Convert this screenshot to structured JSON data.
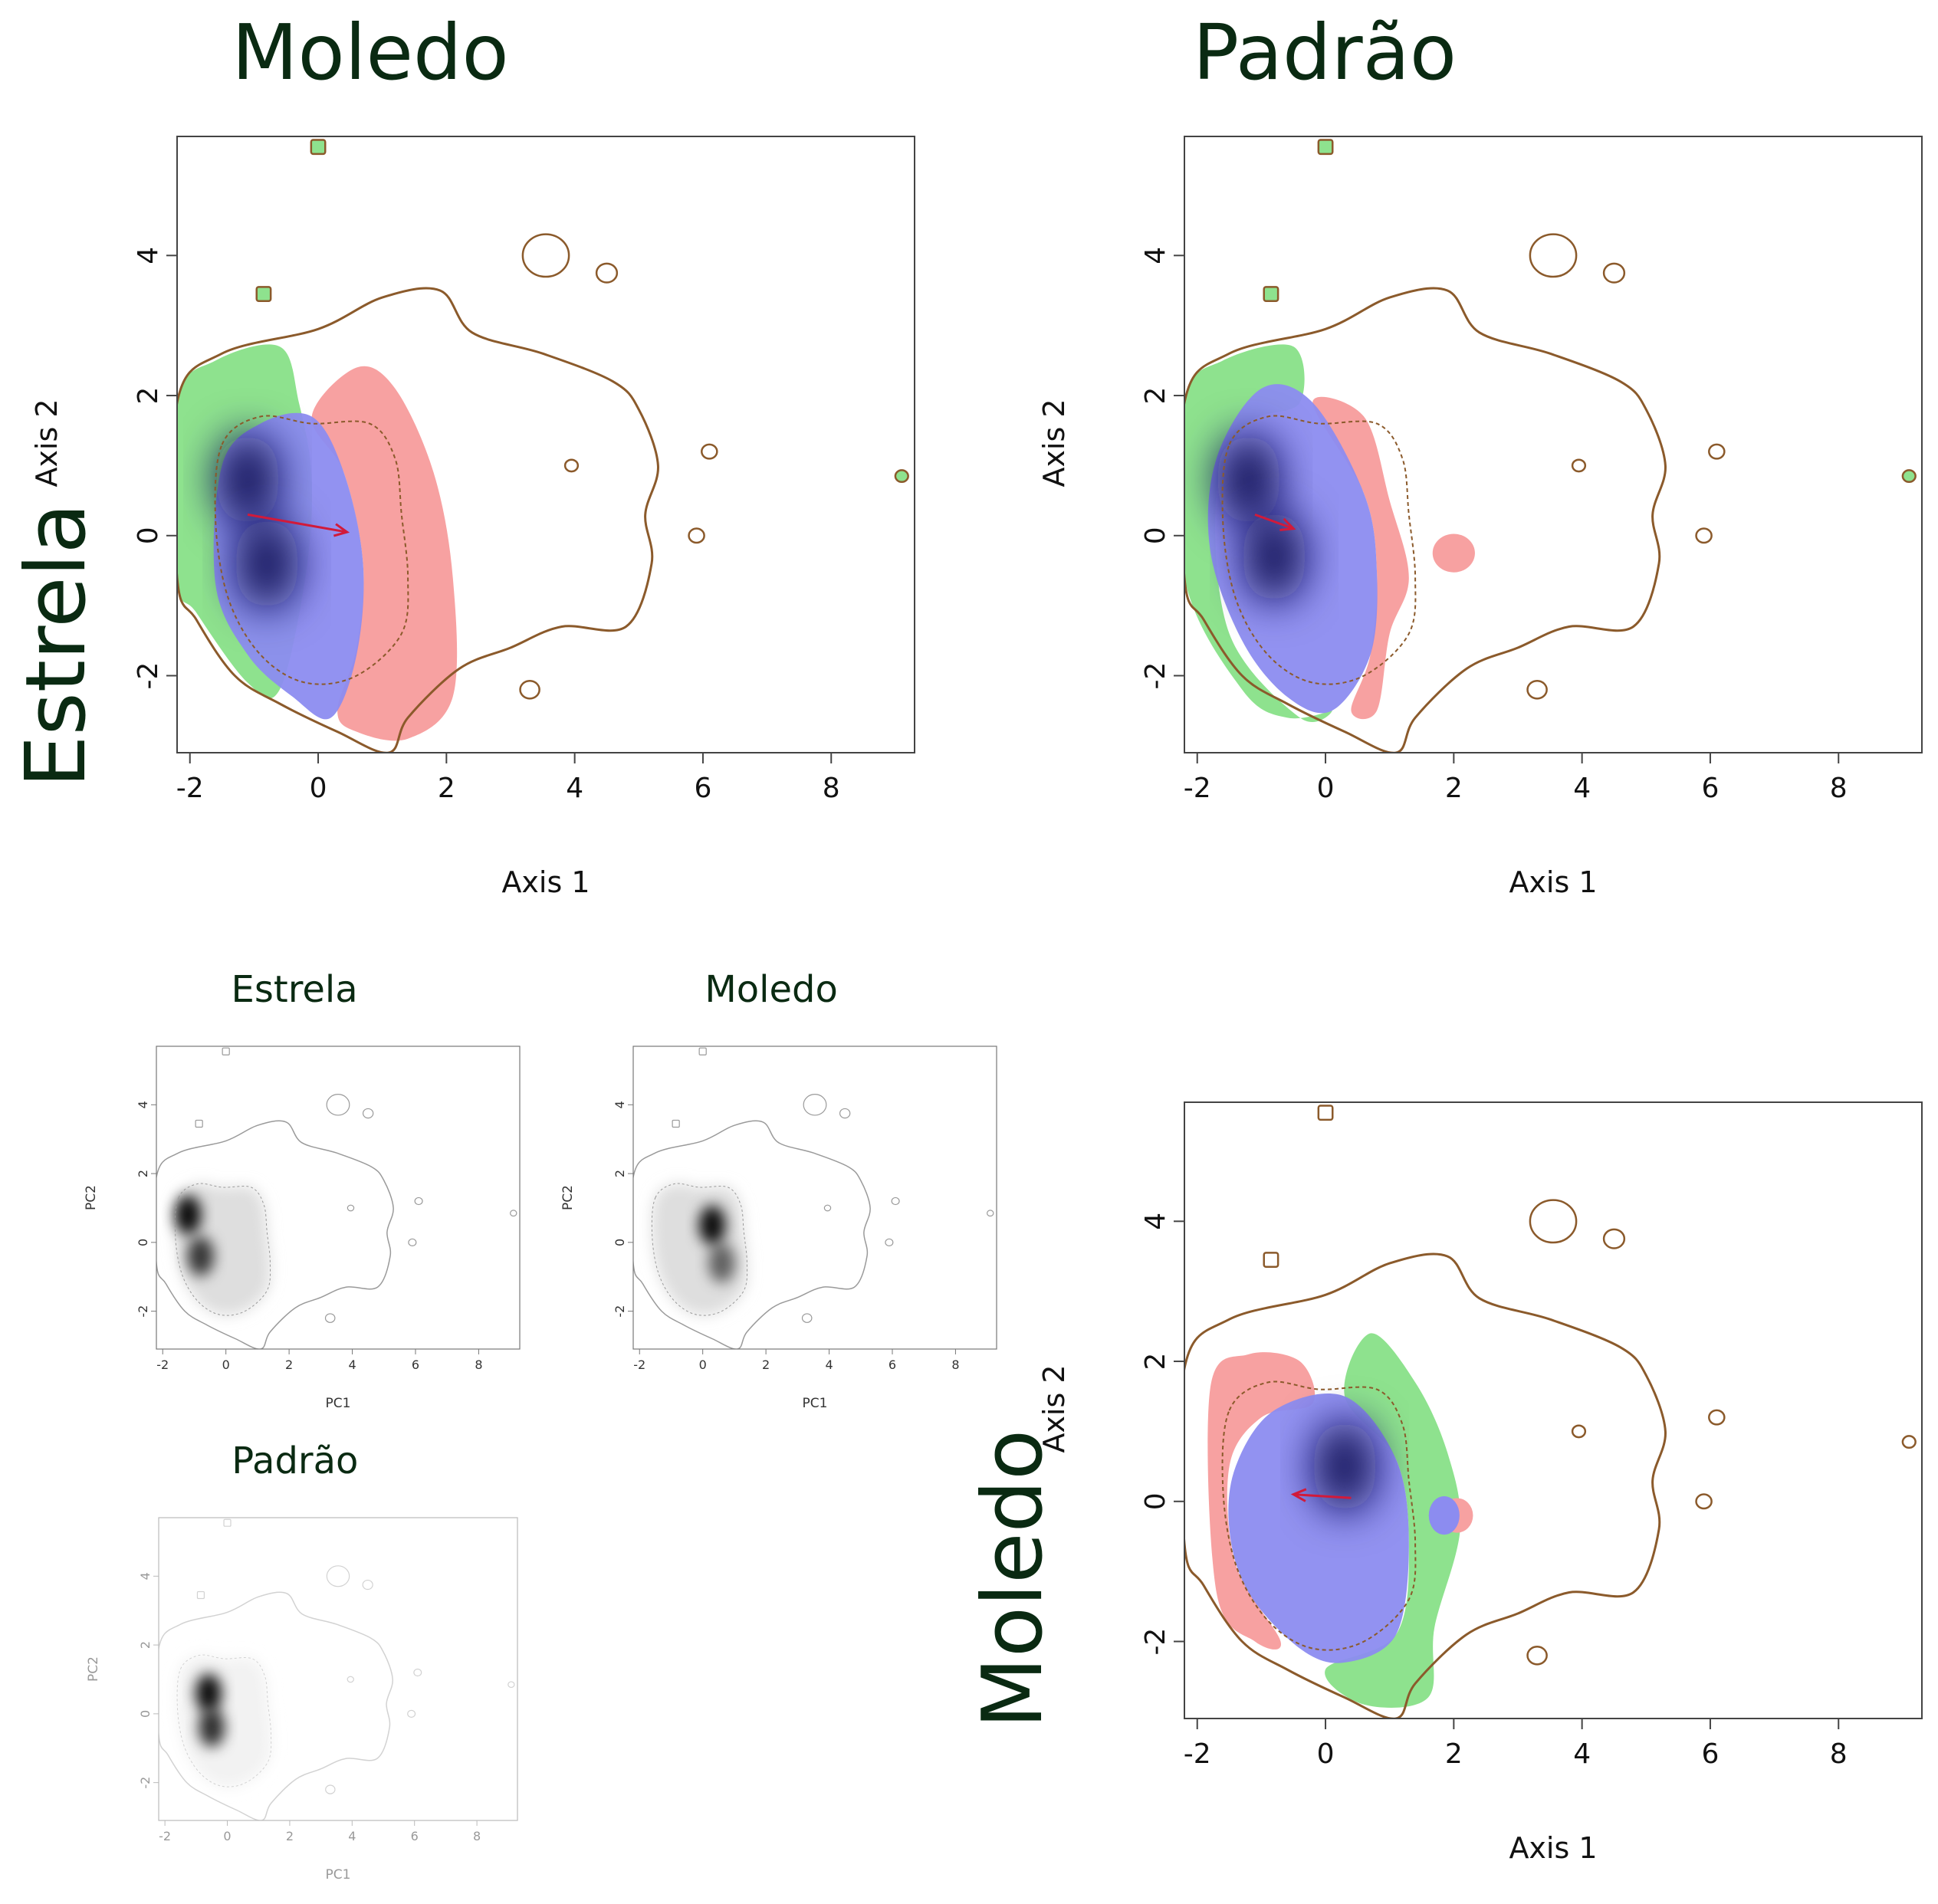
{
  "colors": {
    "text_dark_green": "#0a2a12",
    "contour_brown": "#8b5a2b",
    "green_region": "#8ee28e",
    "red_region": "#f7a1a1",
    "blue_region": "#8c8cf0",
    "blue_core": "#0b0b55",
    "arrow_red": "#d11a3a",
    "gray_axis": "#444444",
    "gray_light": "#aaaaaa"
  },
  "headings": {
    "top_left": "Moledo",
    "top_right": "Padrão",
    "row_top": "Estrela",
    "row_bottom": "Moledo"
  },
  "chart_data": [
    {
      "id": "niche_estrela_moledo",
      "type": "scatter",
      "subtype": "niche-overlap-map",
      "xlabel": "Axis 1",
      "ylabel": "Axis 2",
      "xlim": [
        -2.2,
        9.3
      ],
      "ylim": [
        -3.1,
        5.7
      ],
      "xticks": [
        -2,
        0,
        2,
        4,
        6,
        8
      ],
      "yticks": [
        -2,
        0,
        2,
        4
      ],
      "regions": {
        "green": [
          [
            -2.2,
            1.9
          ],
          [
            -1.6,
            2.5
          ],
          [
            -0.6,
            2.7
          ],
          [
            -0.3,
            1.9
          ],
          [
            -0.1,
            0.8
          ],
          [
            -0.2,
            -0.6
          ],
          [
            -0.6,
            -2.2
          ],
          [
            -1.1,
            -2.1
          ],
          [
            -1.9,
            -1.1
          ],
          [
            -2.2,
            -0.6
          ]
        ],
        "blue": [
          [
            -1.5,
            1.0
          ],
          [
            -0.9,
            1.6
          ],
          [
            -0.1,
            1.7
          ],
          [
            0.4,
            0.9
          ],
          [
            0.7,
            -0.4
          ],
          [
            0.6,
            -1.7
          ],
          [
            0.2,
            -2.6
          ],
          [
            -0.4,
            -2.3
          ],
          [
            -1.1,
            -1.7
          ],
          [
            -1.6,
            -0.7
          ]
        ],
        "red": [
          [
            -0.1,
            1.7
          ],
          [
            0.6,
            2.4
          ],
          [
            1.2,
            2.1
          ],
          [
            1.8,
            0.9
          ],
          [
            2.1,
            -0.6
          ],
          [
            2.1,
            -2.3
          ],
          [
            1.4,
            -2.9
          ],
          [
            0.6,
            -2.8
          ],
          [
            0.3,
            -2.5
          ],
          [
            0.6,
            -1.6
          ],
          [
            0.7,
            -0.4
          ],
          [
            0.4,
            0.9
          ]
        ]
      },
      "dense_cores": [
        {
          "x": -1.1,
          "y": 0.8
        },
        {
          "x": -0.8,
          "y": -0.4
        }
      ],
      "arrow": {
        "from": [
          -1.1,
          0.3
        ],
        "to": [
          0.45,
          0.05
        ]
      }
    },
    {
      "id": "niche_estrela_padrao",
      "type": "scatter",
      "subtype": "niche-overlap-map",
      "xlabel": "Axis 1",
      "ylabel": "Axis 2",
      "xlim": [
        -2.2,
        9.3
      ],
      "ylim": [
        -3.1,
        5.7
      ],
      "xticks": [
        -2,
        0,
        2,
        4,
        6,
        8
      ],
      "yticks": [
        -2,
        0,
        2,
        4
      ],
      "regions": {
        "green": [
          [
            -2.2,
            1.9
          ],
          [
            -1.6,
            2.5
          ],
          [
            -0.5,
            2.7
          ],
          [
            -0.4,
            1.9
          ],
          [
            -1.2,
            1.6
          ],
          [
            -1.7,
            0.6
          ],
          [
            -1.5,
            -1.4
          ],
          [
            -0.4,
            -2.6
          ],
          [
            0.1,
            -2.5
          ],
          [
            -0.6,
            -2.6
          ],
          [
            -1.3,
            -2.2
          ],
          [
            -2.2,
            -0.6
          ]
        ],
        "blue": [
          [
            -1.7,
            1.1
          ],
          [
            -1.0,
            2.1
          ],
          [
            -0.2,
            1.9
          ],
          [
            0.6,
            0.6
          ],
          [
            0.8,
            -0.5
          ],
          [
            0.7,
            -1.7
          ],
          [
            0.1,
            -2.5
          ],
          [
            -0.6,
            -2.3
          ],
          [
            -1.3,
            -1.5
          ],
          [
            -1.8,
            -0.2
          ]
        ],
        "red": [
          [
            -0.2,
            1.9
          ],
          [
            0.6,
            1.7
          ],
          [
            1.0,
            0.5
          ],
          [
            1.3,
            -0.6
          ],
          [
            1.0,
            -1.4
          ],
          [
            0.8,
            -2.5
          ],
          [
            0.4,
            -2.5
          ],
          [
            0.7,
            -1.7
          ],
          [
            0.8,
            -0.5
          ],
          [
            0.6,
            0.6
          ]
        ],
        "red_blob": {
          "x": 2.0,
          "y": -0.25
        }
      },
      "dense_cores": [
        {
          "x": -1.2,
          "y": 0.8
        },
        {
          "x": -0.8,
          "y": -0.3
        }
      ],
      "arrow": {
        "from": [
          -1.1,
          0.3
        ],
        "to": [
          -0.5,
          0.1
        ]
      }
    },
    {
      "id": "niche_moledo_padrao",
      "type": "scatter",
      "subtype": "niche-overlap-map",
      "xlabel": "Axis 1",
      "ylabel": "Axis 2",
      "xlim": [
        -2.2,
        9.3
      ],
      "ylim": [
        -3.1,
        5.7
      ],
      "xticks": [
        -2,
        0,
        2,
        4,
        6,
        8
      ],
      "yticks": [
        -2,
        0,
        2,
        4
      ],
      "regions": {
        "red": [
          [
            -1.8,
            1.6
          ],
          [
            -1.2,
            2.1
          ],
          [
            -0.4,
            2.0
          ],
          [
            -0.2,
            1.4
          ],
          [
            -1.0,
            1.2
          ],
          [
            -1.5,
            0.5
          ],
          [
            -1.4,
            -0.9
          ],
          [
            -0.7,
            -2.0
          ],
          [
            -1.1,
            -2.0
          ],
          [
            -1.7,
            -1.3
          ]
        ],
        "blue": [
          [
            -1.4,
            0.5
          ],
          [
            -0.8,
            1.3
          ],
          [
            0.3,
            1.5
          ],
          [
            1.1,
            0.6
          ],
          [
            1.3,
            -0.6
          ],
          [
            1.1,
            -1.9
          ],
          [
            0.3,
            -2.3
          ],
          [
            -0.4,
            -2.1
          ],
          [
            -1.2,
            -1.3
          ],
          [
            -1.5,
            -0.4
          ]
        ],
        "green": [
          [
            0.3,
            1.5
          ],
          [
            0.7,
            2.4
          ],
          [
            1.4,
            1.7
          ],
          [
            1.9,
            0.7
          ],
          [
            2.1,
            -0.4
          ],
          [
            1.7,
            -1.8
          ],
          [
            1.6,
            -2.8
          ],
          [
            0.6,
            -2.9
          ],
          [
            0.0,
            -2.4
          ],
          [
            1.1,
            -1.9
          ],
          [
            1.3,
            -0.6
          ],
          [
            1.1,
            0.6
          ]
        ],
        "blue_blob": {
          "x": 1.85,
          "y": -0.2
        }
      },
      "dense_cores": [
        {
          "x": 0.3,
          "y": 0.5
        }
      ],
      "arrow": {
        "from": [
          0.4,
          0.05
        ],
        "to": [
          -0.5,
          0.1
        ]
      }
    },
    {
      "id": "density_estrela",
      "type": "heatmap",
      "title": "Estrela",
      "xlabel": "PC1",
      "ylabel": "PC2",
      "xlim": [
        -2.2,
        9.3
      ],
      "ylim": [
        -3.1,
        5.7
      ],
      "xticks": [
        -2,
        0,
        2,
        4,
        6,
        8
      ],
      "yticks": [
        -2,
        0,
        2,
        4
      ],
      "density_peaks": [
        {
          "x": -1.2,
          "y": 0.8,
          "w": 1.0
        },
        {
          "x": -0.8,
          "y": -0.4,
          "w": 0.8
        }
      ]
    },
    {
      "id": "density_moledo",
      "type": "heatmap",
      "title": "Moledo",
      "xlabel": "PC1",
      "ylabel": "PC2",
      "xlim": [
        -2.2,
        9.3
      ],
      "ylim": [
        -3.1,
        5.7
      ],
      "xticks": [
        -2,
        0,
        2,
        4,
        6,
        8
      ],
      "yticks": [
        -2,
        0,
        2,
        4
      ],
      "density_peaks": [
        {
          "x": 0.3,
          "y": 0.5,
          "w": 1.0
        },
        {
          "x": 0.6,
          "y": -0.6,
          "w": 0.6
        }
      ]
    },
    {
      "id": "density_padrao",
      "type": "heatmap",
      "title": "Padrão",
      "xlabel": "PC1",
      "ylabel": "PC2",
      "xlim": [
        -2.2,
        9.3
      ],
      "ylim": [
        -3.1,
        5.7
      ],
      "xticks": [
        -2,
        0,
        2,
        4,
        6,
        8
      ],
      "yticks": [
        -2,
        0,
        2,
        4
      ],
      "density_peaks": [
        {
          "x": -0.6,
          "y": 0.6,
          "w": 1.0
        },
        {
          "x": -0.5,
          "y": -0.4,
          "w": 0.85
        }
      ]
    }
  ],
  "background": {
    "outer_contour": [
      [
        -2.2,
        1.9
      ],
      [
        -1.5,
        2.6
      ],
      [
        0.0,
        2.95
      ],
      [
        1.0,
        3.4
      ],
      [
        1.9,
        3.5
      ],
      [
        2.4,
        2.9
      ],
      [
        3.5,
        2.6
      ],
      [
        4.6,
        2.2
      ],
      [
        5.0,
        1.8
      ],
      [
        5.3,
        1.0
      ],
      [
        5.1,
        0.3
      ],
      [
        5.2,
        -0.4
      ],
      [
        4.8,
        -1.3
      ],
      [
        3.8,
        -1.3
      ],
      [
        3.0,
        -1.6
      ],
      [
        2.2,
        -1.9
      ],
      [
        1.4,
        -2.6
      ],
      [
        1.1,
        -3.1
      ],
      [
        0.3,
        -2.8
      ],
      [
        -0.6,
        -2.4
      ],
      [
        -1.3,
        -2.0
      ],
      [
        -1.9,
        -1.2
      ],
      [
        -2.2,
        -0.6
      ]
    ],
    "inner_contour": [
      [
        -1.5,
        1.3
      ],
      [
        -0.9,
        1.7
      ],
      [
        -0.1,
        1.6
      ],
      [
        0.8,
        1.6
      ],
      [
        1.2,
        1.1
      ],
      [
        1.3,
        0.3
      ],
      [
        1.4,
        -0.6
      ],
      [
        1.3,
        -1.4
      ],
      [
        0.6,
        -2.0
      ],
      [
        -0.2,
        -2.1
      ],
      [
        -0.9,
        -1.7
      ],
      [
        -1.4,
        -0.9
      ],
      [
        -1.6,
        0.2
      ]
    ],
    "islands": [
      {
        "x": 3.55,
        "y": 4.0,
        "r": 0.36
      },
      {
        "x": 4.5,
        "y": 3.75,
        "r": 0.16
      },
      {
        "x": 3.95,
        "y": 1.0,
        "r": 0.1
      },
      {
        "x": 6.1,
        "y": 1.2,
        "r": 0.12
      },
      {
        "x": 5.9,
        "y": 0.0,
        "r": 0.12
      },
      {
        "x": 3.3,
        "y": -2.2,
        "r": 0.15
      },
      {
        "x": 9.1,
        "y": 0.85,
        "r": 0.1
      },
      {
        "x": 0.0,
        "y": 5.55,
        "r": 0.11
      },
      {
        "x": -0.85,
        "y": 3.45,
        "r": 0.11
      }
    ]
  }
}
